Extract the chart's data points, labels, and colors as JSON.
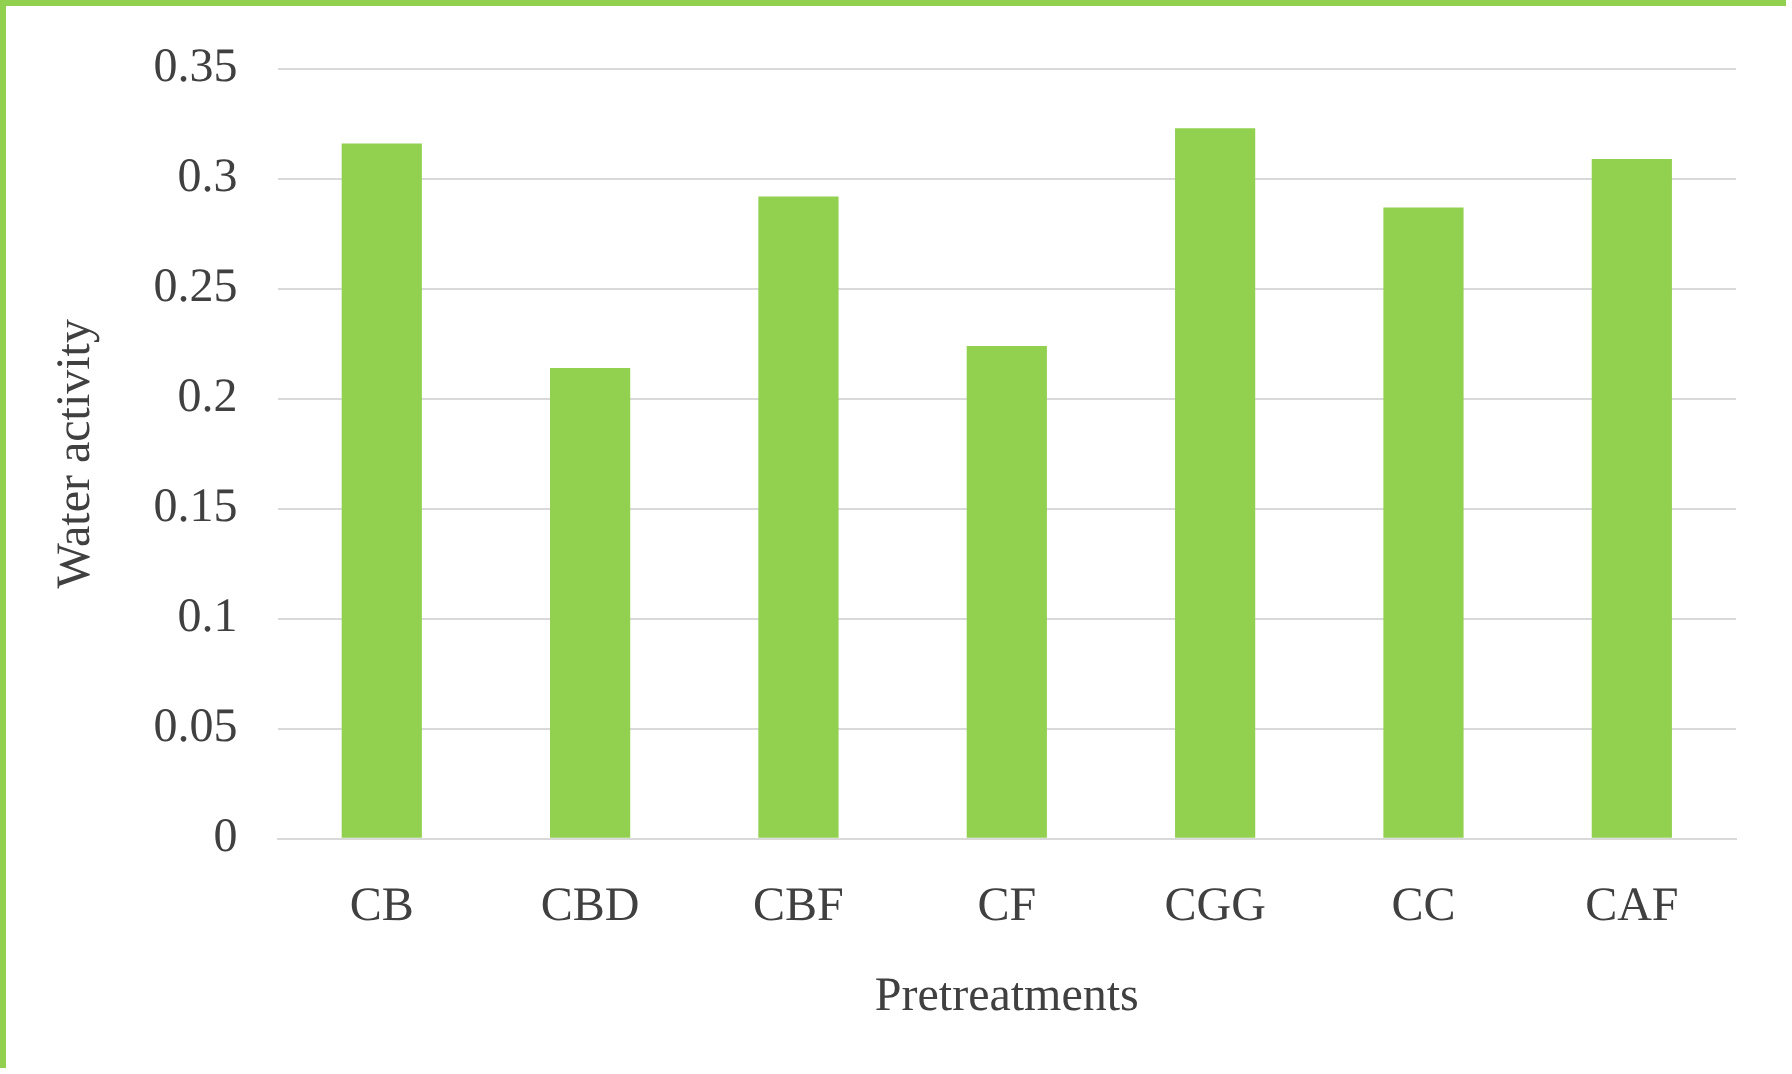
{
  "chart_data": {
    "type": "bar",
    "xlabel": "Pretreatments",
    "ylabel": "Water activity",
    "categories": [
      "CB",
      "CBD",
      "CBF",
      "CF",
      "CGG",
      "CC",
      "CAF"
    ],
    "values": [
      0.316,
      0.214,
      0.292,
      0.224,
      0.323,
      0.287,
      0.309
    ],
    "color": "#92d050",
    "ylim": [
      0,
      0.35
    ],
    "yticks": [
      0,
      0.05,
      0.1,
      0.15,
      0.2,
      0.25,
      0.3,
      0.35
    ],
    "grid": "y",
    "legend": false
  }
}
